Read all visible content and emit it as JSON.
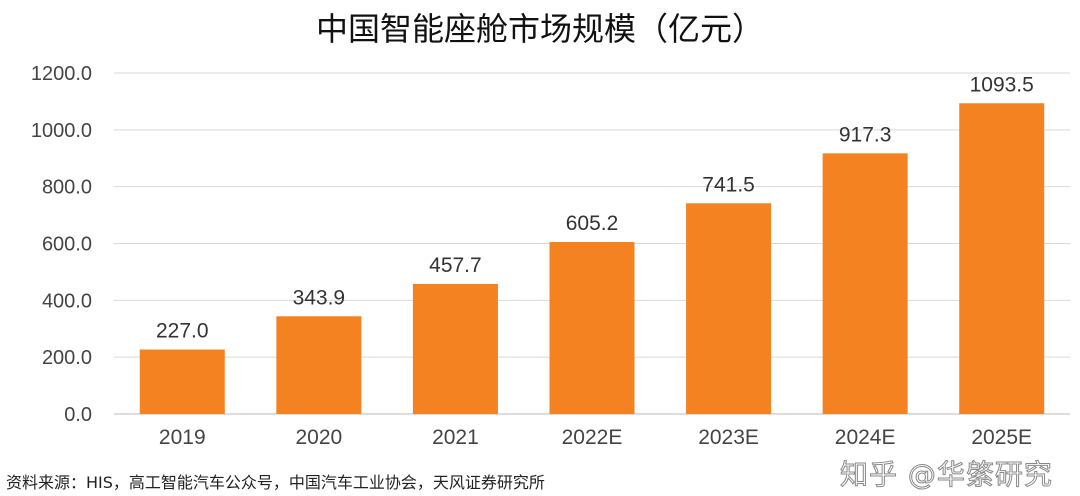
{
  "chart_data": {
    "type": "bar",
    "title": "中国智能座舱市场规模（亿元）",
    "xlabel": "",
    "ylabel": "",
    "categories": [
      "2019",
      "2020",
      "2021",
      "2022E",
      "2023E",
      "2024E",
      "2025E"
    ],
    "values": [
      227.0,
      343.9,
      457.7,
      605.2,
      741.5,
      917.3,
      1093.5
    ],
    "data_labels": [
      "227.0",
      "343.9",
      "457.7",
      "605.2",
      "741.5",
      "917.3",
      "1093.5"
    ],
    "ylim": [
      0,
      1200
    ],
    "yticks": [
      "0.0",
      "200.0",
      "400.0",
      "600.0",
      "800.0",
      "1000.0",
      "1200.0"
    ],
    "grid": true,
    "bar_color": "#F58220"
  },
  "source": "资料来源：HIS，高工智能汽车公众号，中国汽车工业协会，天风证券研究所",
  "watermark": "知乎 @华綮研究"
}
